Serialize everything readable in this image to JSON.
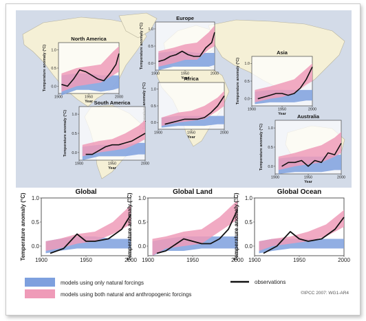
{
  "legend": {
    "natural_label": "models using only natural forcings",
    "both_label": "models using both natural and anthropogenic forcings",
    "obs_label": "observations",
    "natural_color": "#7ea0de",
    "both_color": "#ef9bb8",
    "obs_color": "#111111"
  },
  "credit": "©IPCC 2007: WG1-AR4",
  "colors": {
    "ocean": "#d3dbe8",
    "land": "#f5f0d6",
    "land_stroke": "#b6b19a"
  },
  "chart_data": [
    {
      "type": "line",
      "region": "North America",
      "title": "North America",
      "xlabel": "Year",
      "ylabel": "Temperature anomaly (°C)",
      "xlim": [
        1900,
        2000
      ],
      "ylim": [
        -0.2,
        1.2
      ],
      "xticks": [
        1900,
        1950,
        2000
      ],
      "yticks": [
        0.0,
        0.5,
        1.0
      ],
      "yticklabels": [
        "0.0",
        "0.5",
        "1.0"
      ],
      "natural": {
        "x": [
          1905,
          1930,
          1950,
          1970,
          1990,
          2000
        ],
        "low": [
          -0.25,
          -0.1,
          -0.1,
          -0.15,
          -0.1,
          -0.05
        ],
        "high": [
          0.3,
          0.35,
          0.35,
          0.3,
          0.3,
          0.3
        ]
      },
      "both": {
        "x": [
          1905,
          1930,
          1950,
          1970,
          1990,
          2000
        ],
        "low": [
          -0.15,
          0.0,
          0.05,
          0.1,
          0.3,
          0.4
        ],
        "high": [
          0.35,
          0.5,
          0.55,
          0.6,
          0.95,
          1.1
        ]
      },
      "obs": {
        "x": [
          1905,
          1915,
          1925,
          1935,
          1945,
          1955,
          1965,
          1975,
          1985,
          1995,
          2000
        ],
        "y": [
          0.05,
          0.0,
          0.2,
          0.45,
          0.4,
          0.3,
          0.2,
          0.15,
          0.35,
          0.6,
          0.9
        ]
      }
    },
    {
      "type": "line",
      "region": "Europe",
      "title": "Europe",
      "xlabel": "Year",
      "ylabel": "Temperature anomaly (°C)",
      "xlim": [
        1900,
        2000
      ],
      "ylim": [
        -0.2,
        1.2
      ],
      "xticks": [
        1900,
        1950,
        2000
      ],
      "yticks": [
        0.0,
        0.5,
        1.0
      ],
      "yticklabels": [
        "0.0",
        "0.5",
        "1.0"
      ],
      "natural": {
        "x": [
          1905,
          1930,
          1950,
          1970,
          1990,
          2000
        ],
        "low": [
          -0.2,
          -0.1,
          -0.1,
          -0.1,
          -0.1,
          -0.05
        ],
        "high": [
          0.3,
          0.35,
          0.35,
          0.3,
          0.3,
          0.3
        ]
      },
      "both": {
        "x": [
          1905,
          1930,
          1950,
          1970,
          1990,
          2000
        ],
        "low": [
          -0.1,
          0.0,
          0.1,
          0.1,
          0.4,
          0.5
        ],
        "high": [
          0.35,
          0.45,
          0.55,
          0.6,
          0.9,
          1.1
        ]
      },
      "obs": {
        "x": [
          1905,
          1915,
          1925,
          1935,
          1945,
          1955,
          1965,
          1975,
          1985,
          1995,
          2000
        ],
        "y": [
          0.05,
          0.1,
          0.2,
          0.25,
          0.35,
          0.25,
          0.2,
          0.2,
          0.45,
          0.6,
          0.9
        ]
      }
    },
    {
      "type": "line",
      "region": "Asia",
      "title": "Asia",
      "xlabel": "Year",
      "ylabel": "Temperature anomaly (°C)",
      "xlim": [
        1900,
        2000
      ],
      "ylim": [
        -0.2,
        1.2
      ],
      "xticks": [
        1900,
        1950,
        2000
      ],
      "yticks": [
        0.0,
        0.5,
        1.0
      ],
      "yticklabels": [
        "0.0",
        "0.5",
        "1.0"
      ],
      "natural": {
        "x": [
          1905,
          1930,
          1950,
          1970,
          1990,
          2000
        ],
        "low": [
          -0.15,
          -0.1,
          -0.1,
          -0.1,
          -0.05,
          -0.05
        ],
        "high": [
          0.2,
          0.25,
          0.25,
          0.25,
          0.25,
          0.25
        ]
      },
      "both": {
        "x": [
          1905,
          1930,
          1950,
          1970,
          1990,
          2000
        ],
        "low": [
          -0.1,
          0.0,
          0.05,
          0.15,
          0.4,
          0.5
        ],
        "high": [
          0.25,
          0.35,
          0.45,
          0.55,
          0.85,
          1.0
        ]
      },
      "obs": {
        "x": [
          1910,
          1920,
          1930,
          1940,
          1950,
          1960,
          1970,
          1980,
          1990,
          2000
        ],
        "y": [
          0.0,
          0.05,
          0.1,
          0.15,
          0.15,
          0.1,
          0.15,
          0.3,
          0.55,
          0.9
        ]
      }
    },
    {
      "type": "line",
      "region": "Africa",
      "title": "Africa",
      "xlabel": "Year",
      "ylabel": "Temperature anomaly (°C)",
      "xlim": [
        1900,
        2000
      ],
      "ylim": [
        -0.2,
        1.2
      ],
      "xticks": [
        1900,
        1950,
        2000
      ],
      "yticks": [
        0.0,
        0.5,
        1.0
      ],
      "yticklabels": [
        "0.0",
        "0.5",
        "1.0"
      ],
      "natural": {
        "x": [
          1905,
          1930,
          1950,
          1970,
          1990,
          2000
        ],
        "low": [
          -0.15,
          -0.1,
          -0.1,
          -0.1,
          -0.05,
          -0.05
        ],
        "high": [
          0.15,
          0.2,
          0.2,
          0.2,
          0.2,
          0.2
        ]
      },
      "both": {
        "x": [
          1905,
          1930,
          1950,
          1970,
          1990,
          2000
        ],
        "low": [
          -0.1,
          0.0,
          0.05,
          0.1,
          0.35,
          0.5
        ],
        "high": [
          0.15,
          0.3,
          0.35,
          0.5,
          0.75,
          0.95
        ]
      },
      "obs": {
        "x": [
          1910,
          1920,
          1930,
          1940,
          1950,
          1960,
          1970,
          1980,
          1990,
          2000
        ],
        "y": [
          -0.05,
          0.0,
          0.05,
          0.1,
          0.1,
          0.1,
          0.15,
          0.3,
          0.5,
          0.8
        ]
      }
    },
    {
      "type": "line",
      "region": "South America",
      "title": "South America",
      "xlabel": "Year",
      "ylabel": "Temperature anomaly (°C)",
      "xlim": [
        1900,
        2000
      ],
      "ylim": [
        -0.2,
        1.2
      ],
      "xticks": [
        1900,
        1950,
        2000
      ],
      "yticks": [
        0.0,
        0.5,
        1.0
      ],
      "yticklabels": [
        "0.0",
        "0.5",
        "1.0"
      ],
      "natural": {
        "x": [
          1905,
          1930,
          1950,
          1970,
          1990,
          2000
        ],
        "low": [
          -0.2,
          -0.1,
          -0.1,
          -0.1,
          -0.05,
          -0.05
        ],
        "high": [
          0.15,
          0.2,
          0.2,
          0.2,
          0.25,
          0.25
        ]
      },
      "both": {
        "x": [
          1905,
          1930,
          1950,
          1970,
          1990,
          2000
        ],
        "low": [
          -0.1,
          0.0,
          0.05,
          0.1,
          0.25,
          0.35
        ],
        "high": [
          0.2,
          0.3,
          0.35,
          0.5,
          0.7,
          0.85
        ]
      },
      "obs": {
        "x": [
          1910,
          1920,
          1930,
          1940,
          1950,
          1960,
          1970,
          1980,
          1990,
          2000
        ],
        "y": [
          -0.05,
          -0.05,
          0.05,
          0.15,
          0.2,
          0.2,
          0.25,
          0.3,
          0.4,
          0.5
        ]
      }
    },
    {
      "type": "line",
      "region": "Australia",
      "title": "Australia",
      "xlabel": "Year",
      "ylabel": "Temperature anomaly (°C)",
      "xlim": [
        1900,
        2000
      ],
      "ylim": [
        -0.2,
        1.2
      ],
      "xticks": [
        1900,
        1950,
        2000
      ],
      "yticks": [
        0.0,
        0.5,
        1.0
      ],
      "yticklabels": [
        "0.0",
        "0.5",
        "1.0"
      ],
      "natural": {
        "x": [
          1905,
          1930,
          1950,
          1970,
          1990,
          2000
        ],
        "low": [
          -0.2,
          -0.15,
          -0.15,
          -0.15,
          -0.1,
          -0.1
        ],
        "high": [
          0.2,
          0.25,
          0.25,
          0.25,
          0.3,
          0.3
        ]
      },
      "both": {
        "x": [
          1905,
          1930,
          1950,
          1970,
          1990,
          2000
        ],
        "low": [
          -0.1,
          0.0,
          0.05,
          0.1,
          0.25,
          0.35
        ],
        "high": [
          0.25,
          0.35,
          0.45,
          0.55,
          0.75,
          0.9
        ]
      },
      "obs": {
        "x": [
          1910,
          1920,
          1930,
          1940,
          1950,
          1960,
          1970,
          1980,
          1990,
          2000
        ],
        "y": [
          0.0,
          0.1,
          0.1,
          0.15,
          0.0,
          0.15,
          0.1,
          0.35,
          0.3,
          0.6
        ]
      }
    },
    {
      "type": "line",
      "region": "Global",
      "title": "Global",
      "xlabel": "",
      "ylabel": "Temperature anomaly (°C)",
      "xlim": [
        1900,
        2000
      ],
      "ylim": [
        -0.2,
        1.0
      ],
      "xticks": [
        1900,
        1950,
        2000
      ],
      "yticks": [
        0.0,
        0.5,
        1.0
      ],
      "yticklabels": [
        "0.0",
        "0.5",
        "1.0"
      ],
      "natural": {
        "x": [
          1905,
          1920,
          1940,
          1960,
          1980,
          2000
        ],
        "low": [
          -0.15,
          -0.1,
          -0.05,
          -0.05,
          -0.05,
          -0.05
        ],
        "high": [
          0.1,
          0.15,
          0.2,
          0.2,
          0.15,
          0.15
        ]
      },
      "both": {
        "x": [
          1905,
          1920,
          1940,
          1960,
          1980,
          2000
        ],
        "low": [
          -0.1,
          -0.05,
          0.05,
          0.1,
          0.25,
          0.45
        ],
        "high": [
          0.1,
          0.15,
          0.25,
          0.3,
          0.5,
          0.85
        ]
      },
      "obs": {
        "x": [
          1910,
          1925,
          1940,
          1950,
          1960,
          1975,
          1990,
          2000
        ],
        "y": [
          -0.15,
          -0.05,
          0.25,
          0.1,
          0.1,
          0.15,
          0.35,
          0.65
        ]
      }
    },
    {
      "type": "line",
      "region": "Global Land",
      "title": "Global Land",
      "xlabel": "",
      "ylabel": "Temperature anomaly (°C)",
      "xlim": [
        1900,
        2000
      ],
      "ylim": [
        -0.2,
        1.0
      ],
      "xticks": [
        1900,
        1950,
        2000
      ],
      "yticks": [
        0.0,
        0.5,
        1.0
      ],
      "yticklabels": [
        "0.0",
        "0.5",
        "1.0"
      ],
      "natural": {
        "x": [
          1905,
          1920,
          1940,
          1960,
          1980,
          2000
        ],
        "low": [
          -0.2,
          -0.1,
          -0.1,
          -0.05,
          -0.05,
          -0.05
        ],
        "high": [
          0.1,
          0.15,
          0.2,
          0.2,
          0.2,
          0.2
        ]
      },
      "both": {
        "x": [
          1905,
          1920,
          1940,
          1960,
          1980,
          2000
        ],
        "low": [
          -0.2,
          -0.05,
          0.0,
          0.05,
          0.3,
          0.55
        ],
        "high": [
          0.15,
          0.2,
          0.3,
          0.35,
          0.6,
          0.95
        ]
      },
      "obs": {
        "x": [
          1910,
          1920,
          1940,
          1950,
          1960,
          1970,
          1980,
          1990,
          2000
        ],
        "y": [
          -0.15,
          -0.1,
          0.15,
          0.1,
          0.05,
          0.05,
          0.15,
          0.35,
          0.75
        ]
      }
    },
    {
      "type": "line",
      "region": "Global Ocean",
      "title": "Global Ocean",
      "xlabel": "",
      "ylabel": "Temperature anomaly (°C)",
      "xlim": [
        1900,
        2000
      ],
      "ylim": [
        -0.2,
        1.0
      ],
      "xticks": [
        1900,
        1950,
        2000
      ],
      "yticks": [
        0.0,
        0.5,
        1.0
      ],
      "yticklabels": [
        "0.0",
        "0.5",
        "1.0"
      ],
      "natural": {
        "x": [
          1905,
          1920,
          1940,
          1960,
          1980,
          2000
        ],
        "low": [
          -0.15,
          -0.1,
          -0.05,
          -0.05,
          -0.05,
          -0.05
        ],
        "high": [
          0.1,
          0.15,
          0.15,
          0.15,
          0.15,
          0.15
        ]
      },
      "both": {
        "x": [
          1905,
          1920,
          1940,
          1960,
          1980,
          2000
        ],
        "low": [
          -0.1,
          0.0,
          0.05,
          0.1,
          0.2,
          0.4
        ],
        "high": [
          0.1,
          0.15,
          0.2,
          0.3,
          0.45,
          0.75
        ]
      },
      "obs": {
        "x": [
          1910,
          1925,
          1940,
          1950,
          1960,
          1975,
          1990,
          2000
        ],
        "y": [
          -0.15,
          0.0,
          0.3,
          0.15,
          0.1,
          0.15,
          0.35,
          0.6
        ]
      }
    }
  ]
}
